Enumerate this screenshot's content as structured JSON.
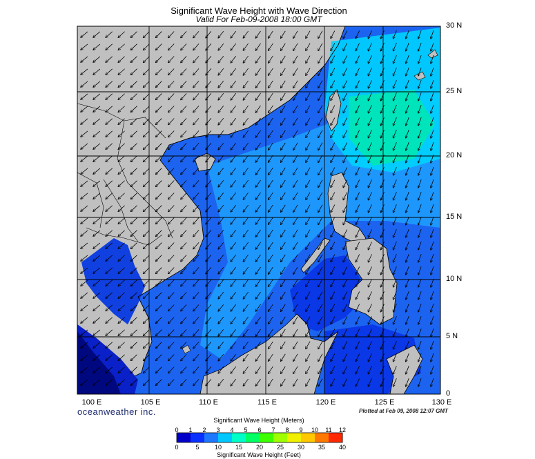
{
  "title": "Significant Wave Height with Wave Direction",
  "subtitle": "Valid For Feb-09-2008 18:00 GMT",
  "lat_labels": [
    "30 N",
    "25 N",
    "20 N",
    "15 N",
    "10 N",
    "5 N",
    "0"
  ],
  "lon_labels": [
    "100 E",
    "105 E",
    "110 E",
    "115 E",
    "120 E",
    "125 E",
    "130 E"
  ],
  "logo": "oceanweather inc.",
  "plotted": "Plotted at Feb 09, 2008 12:07 GMT",
  "colorbar": {
    "meters_title": "Significant Wave Height (Meters)",
    "meters": [
      "0",
      "1",
      "2",
      "3",
      "4",
      "5",
      "6",
      "7",
      "8",
      "9",
      "10",
      "11",
      "12"
    ],
    "feet": [
      "0",
      "5",
      "10",
      "15",
      "20",
      "25",
      "30",
      "35",
      "40"
    ],
    "feet_title": "Significant Wave Height (Feet)",
    "colors": [
      "#0000c8",
      "#0a30ff",
      "#1e78ff",
      "#00c8ff",
      "#00ffc8",
      "#00ff64",
      "#3cff00",
      "#a0ff00",
      "#f0f000",
      "#ffc800",
      "#ff7800",
      "#ff2800"
    ]
  },
  "map": {
    "land_color": "#c0c0c0",
    "ocean_color": "#1c64f0",
    "grid_color": "#000000"
  }
}
